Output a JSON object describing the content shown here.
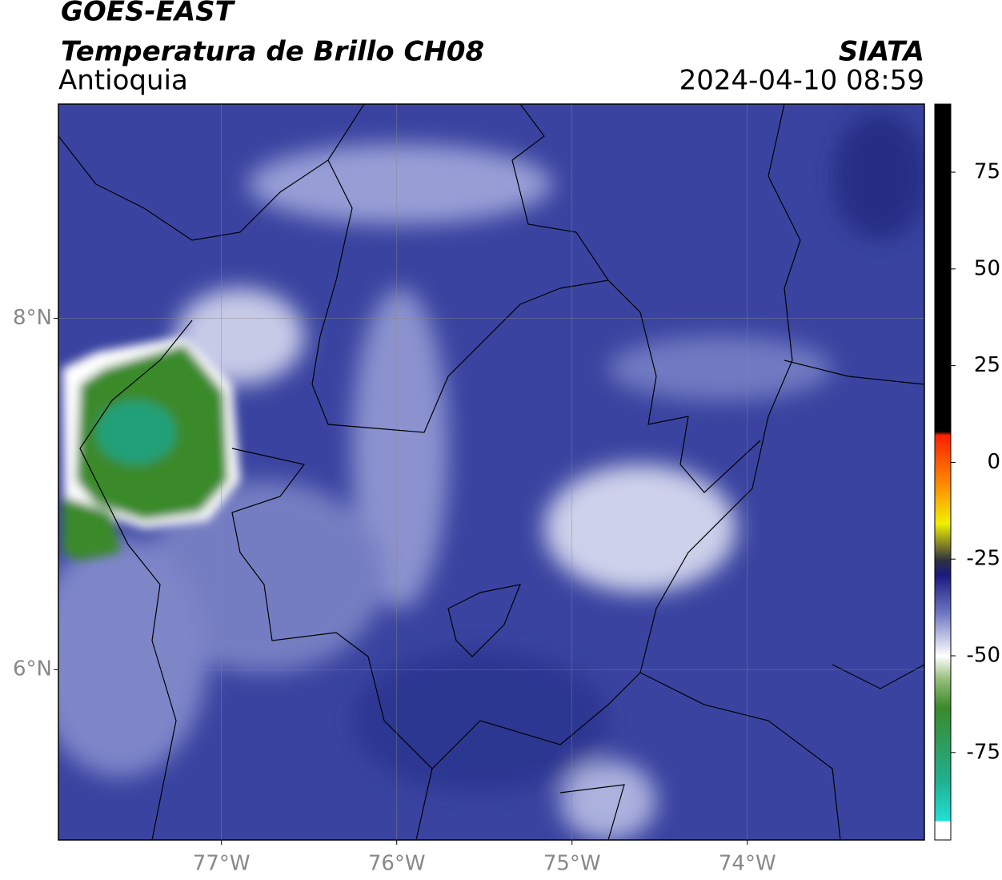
{
  "header": {
    "title": "GOES-EAST",
    "subtitle": "Temperatura de Brillo CH08",
    "region": "Antioquia",
    "source": "SIATA",
    "datetime": "2024-04-10 08:59"
  },
  "map": {
    "xlim": [
      -77.93,
      -72.99
    ],
    "ylim": [
      5.03,
      9.22
    ],
    "xticks": [
      {
        "value": -77,
        "label": "77°W"
      },
      {
        "value": -76,
        "label": "76°W"
      },
      {
        "value": -75,
        "label": "75°W"
      },
      {
        "value": -74,
        "label": "74°W"
      }
    ],
    "yticks": [
      {
        "value": 6,
        "label": "6°N"
      },
      {
        "value": 8,
        "label": "8°N"
      }
    ]
  },
  "colorbar": {
    "lim": [
      -97.6,
      92.6
    ],
    "ticks": [
      75,
      50,
      25,
      0,
      -25,
      -50,
      -75
    ]
  }
}
